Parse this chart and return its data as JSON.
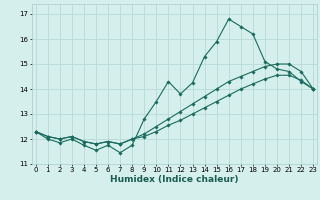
{
  "title": "",
  "xlabel": "Humidex (Indice chaleur)",
  "ylabel": "",
  "background_color": "#d5efec",
  "grid_color": "#b8dbd7",
  "line_color": "#1a6b5e",
  "x": [
    0,
    1,
    2,
    3,
    4,
    5,
    6,
    7,
    8,
    9,
    10,
    11,
    12,
    13,
    14,
    15,
    16,
    17,
    18,
    19,
    20,
    21,
    22,
    23
  ],
  "line1": [
    12.3,
    12.0,
    11.85,
    12.0,
    11.75,
    11.55,
    11.75,
    11.45,
    11.75,
    12.8,
    13.5,
    14.3,
    13.8,
    14.25,
    15.3,
    15.9,
    16.8,
    16.5,
    16.2,
    15.1,
    14.8,
    14.7,
    14.3,
    14.0
  ],
  "line2": [
    12.3,
    12.1,
    12.0,
    12.1,
    11.9,
    11.8,
    11.9,
    11.8,
    12.0,
    12.2,
    12.5,
    12.8,
    13.1,
    13.4,
    13.7,
    14.0,
    14.3,
    14.5,
    14.7,
    14.9,
    15.0,
    15.0,
    14.7,
    14.0
  ],
  "line3": [
    12.3,
    12.1,
    12.0,
    12.1,
    11.9,
    11.8,
    11.9,
    11.8,
    12.0,
    12.1,
    12.3,
    12.55,
    12.75,
    13.0,
    13.25,
    13.5,
    13.75,
    14.0,
    14.2,
    14.4,
    14.55,
    14.55,
    14.35,
    14.0
  ],
  "ylim": [
    11.0,
    17.4
  ],
  "xlim": [
    -0.3,
    23.3
  ],
  "yticks": [
    11,
    12,
    13,
    14,
    15,
    16,
    17
  ],
  "xticks": [
    0,
    1,
    2,
    3,
    4,
    5,
    6,
    7,
    8,
    9,
    10,
    11,
    12,
    13,
    14,
    15,
    16,
    17,
    18,
    19,
    20,
    21,
    22,
    23
  ]
}
